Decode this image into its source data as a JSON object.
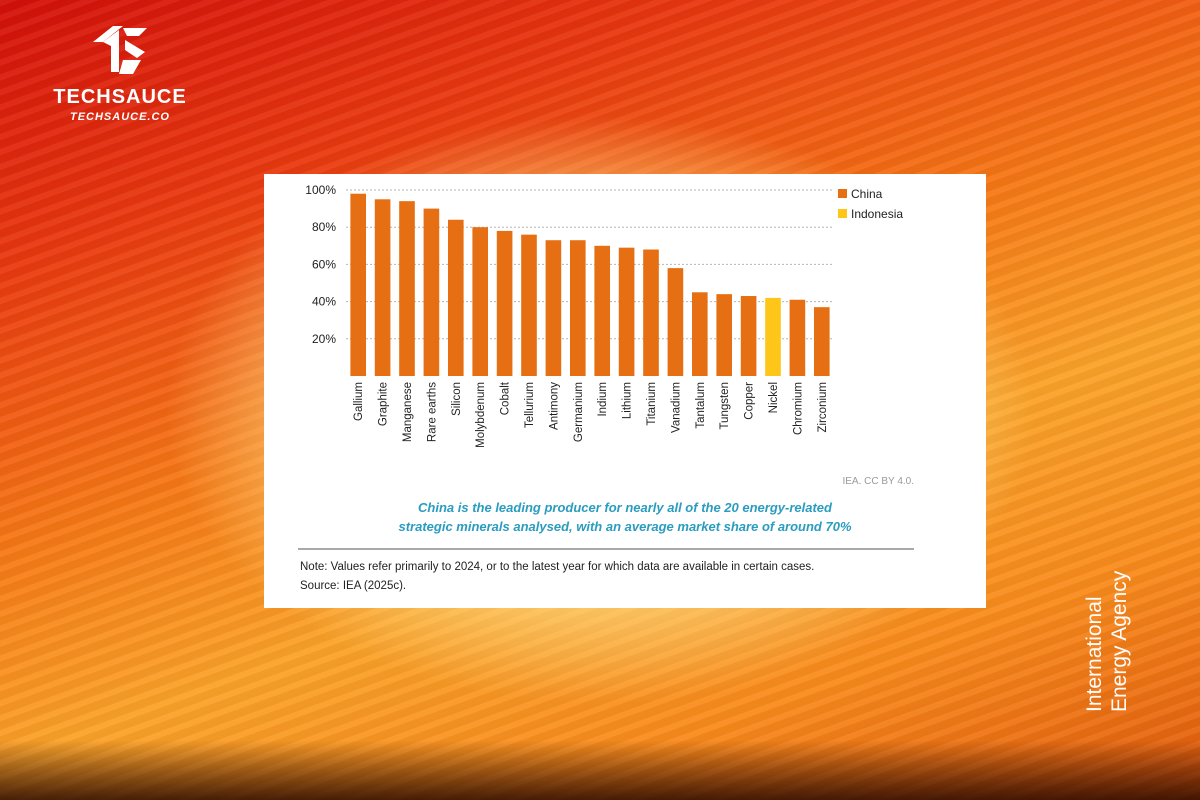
{
  "brand": {
    "name": "TECHSAUCE",
    "site": "TECHSAUCE.CO"
  },
  "side_label": {
    "line1": "International",
    "line2": "Energy Agency"
  },
  "card": {
    "credit": "IEA. CC BY 4.0.",
    "caption_line1": "China is the leading producer for nearly all of the 20 energy-related",
    "caption_line2": "strategic minerals analysed, with an average market share of around 70%",
    "note": "Note: Values refer primarily to 2024, or to the latest year for which data are available in certain cases.",
    "source": "Source: IEA (2025c)."
  },
  "colors": {
    "china": "#e56f12",
    "indonesia": "#ffc61a"
  },
  "chart_data": {
    "type": "bar",
    "categories": [
      "Gallium",
      "Graphite",
      "Manganese",
      "Rare earths",
      "Silicon",
      "Molybdenum",
      "Cobalt",
      "Tellurium",
      "Antimony",
      "Germanium",
      "Indium",
      "Lithium",
      "Titanium",
      "Vanadium",
      "Tantalum",
      "Tungsten",
      "Copper",
      "Nickel",
      "Chromium",
      "Zirconium"
    ],
    "values": [
      98,
      95,
      94,
      90,
      84,
      80,
      78,
      76,
      73,
      73,
      70,
      69,
      68,
      58,
      45,
      44,
      43,
      42,
      41,
      37
    ],
    "producer": [
      "China",
      "China",
      "China",
      "China",
      "China",
      "China",
      "China",
      "China",
      "China",
      "China",
      "China",
      "China",
      "China",
      "China",
      "China",
      "China",
      "China",
      "Indonesia",
      "China",
      "China"
    ],
    "legend": [
      {
        "name": "China",
        "color": "#e56f12"
      },
      {
        "name": "Indonesia",
        "color": "#ffc61a"
      }
    ],
    "legend_position": "top-right",
    "ylim": [
      0,
      100
    ],
    "yticks": [
      "20%",
      "40%",
      "60%",
      "80%",
      "100%"
    ],
    "ytick_values": [
      20,
      40,
      60,
      80,
      100
    ],
    "grid": "horizontal dotted",
    "title": "",
    "xlabel": "",
    "ylabel": ""
  }
}
